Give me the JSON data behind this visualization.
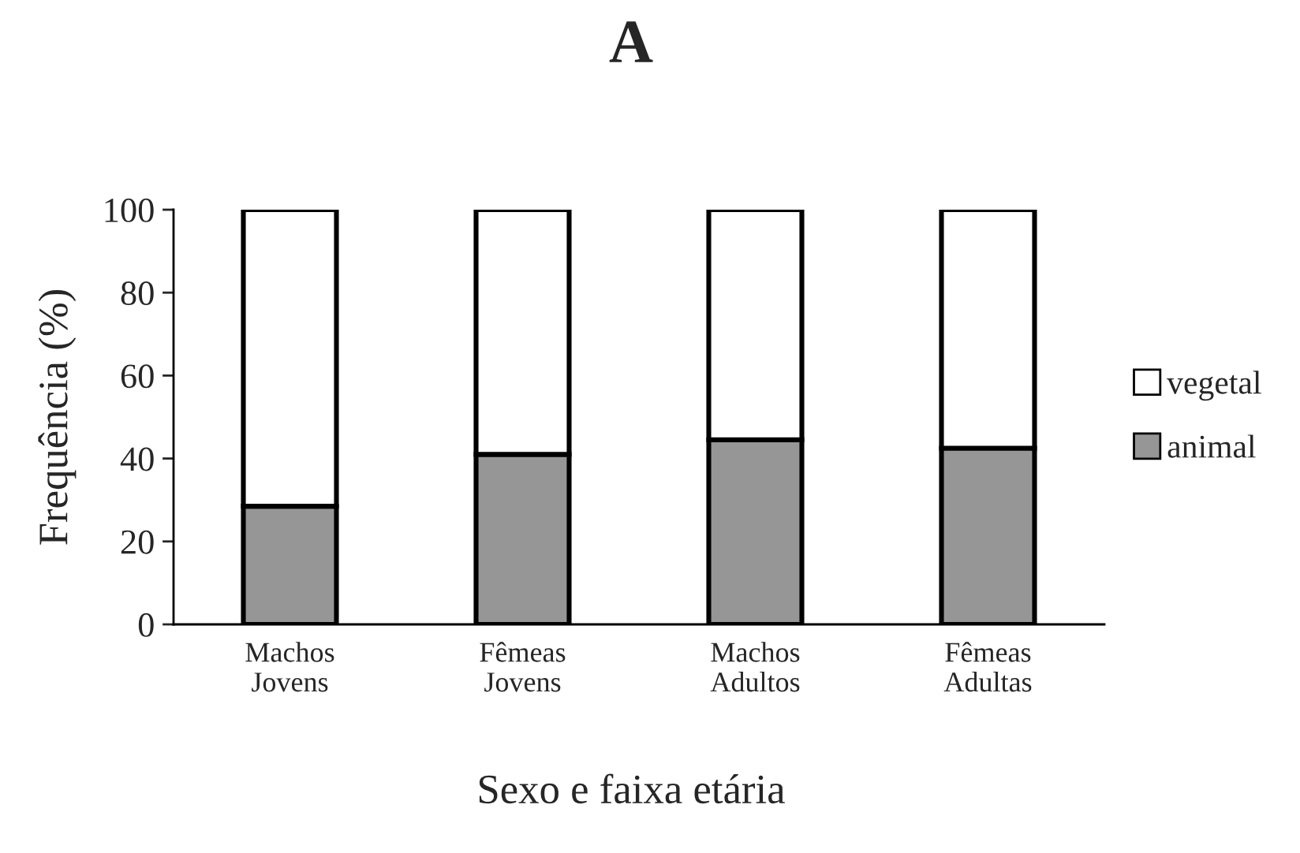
{
  "chart_data": {
    "type": "bar",
    "title": "A",
    "xlabel": "Sexo e faixa etária",
    "ylabel": "Frequência (%)",
    "categories": [
      "Machos\nJovens",
      "Fêmeas\nJovens",
      "Machos\nAdultos",
      "Fêmeas\nAdultas"
    ],
    "series": [
      {
        "name": "animal",
        "color": "#969696",
        "values": [
          28.5,
          41,
          44.5,
          42.5
        ]
      },
      {
        "name": "vegetal",
        "color": "#ffffff",
        "values": [
          71.5,
          59,
          55.5,
          57.5
        ]
      }
    ],
    "stacked": true,
    "ylim": [
      0,
      100
    ],
    "yticks": [
      0,
      20,
      40,
      60,
      80,
      100
    ],
    "grid": false,
    "legend": "right"
  }
}
